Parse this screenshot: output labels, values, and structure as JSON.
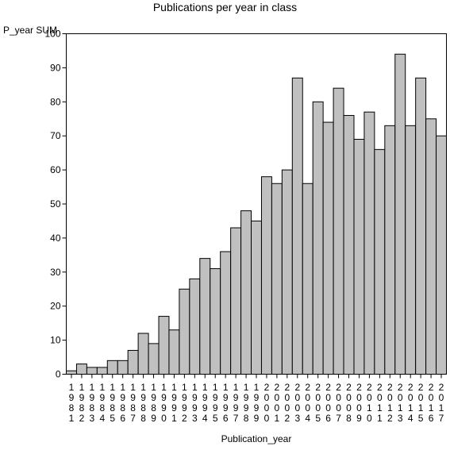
{
  "chart_data": {
    "type": "bar",
    "title": "Publications per year in class",
    "xlabel": "Publication_year",
    "ylabel": "P_year SUM",
    "ylim": [
      0,
      100
    ],
    "yticks": [
      0,
      10,
      20,
      30,
      40,
      50,
      60,
      70,
      80,
      90,
      100
    ],
    "grid": false,
    "legend": "none",
    "bar_color": "#c0c0c0",
    "categories": [
      "1981",
      "1982",
      "1983",
      "1984",
      "1985",
      "1986",
      "1987",
      "1988",
      "1989",
      "1990",
      "1991",
      "1992",
      "1993",
      "1994",
      "1995",
      "1996",
      "1997",
      "1998",
      "1999",
      "2000",
      "2001",
      "2002",
      "2003",
      "2004",
      "2005",
      "2006",
      "2007",
      "2008",
      "2009",
      "2010",
      "2011",
      "2012",
      "2013",
      "2014",
      "2015",
      "2016",
      "2017"
    ],
    "values": [
      1,
      3,
      2,
      2,
      4,
      4,
      7,
      12,
      9,
      17,
      13,
      25,
      28,
      34,
      31,
      36,
      43,
      48,
      45,
      58,
      56,
      60,
      87,
      56,
      80,
      74,
      84,
      76,
      69,
      77,
      66,
      73,
      94,
      73,
      87,
      75,
      70
    ]
  }
}
